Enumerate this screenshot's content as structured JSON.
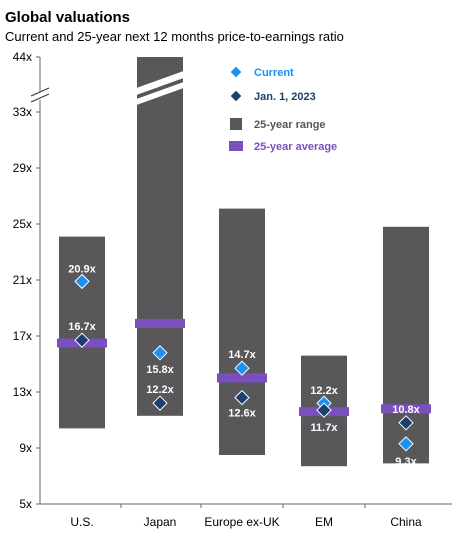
{
  "chart_data": {
    "type": "bar",
    "title": "Global valuations",
    "subtitle": "Current and 25-year next 12 months price-to-earnings ratio",
    "categories": [
      "U.S.",
      "Japan",
      "Europe ex-UK",
      "EM",
      "China"
    ],
    "ylim": [
      5,
      44
    ],
    "yticks": [
      5,
      9,
      13,
      17,
      21,
      25,
      29,
      33,
      44
    ],
    "ytick_labels": [
      "5x",
      "9x",
      "13x",
      "17x",
      "21x",
      "25x",
      "29x",
      "33x",
      "44x"
    ],
    "axis_break": "between 33x and 44x",
    "range": [
      {
        "low": 10.4,
        "high": 24.1
      },
      {
        "low": 11.3,
        "high": 44
      },
      {
        "low": 8.5,
        "high": 26.1
      },
      {
        "low": 7.7,
        "high": 15.6
      },
      {
        "low": 7.9,
        "high": 24.8
      }
    ],
    "series": [
      {
        "name": "Current",
        "values": [
          20.9,
          15.8,
          14.7,
          12.2,
          9.3
        ],
        "labels": [
          "20.9x",
          "15.8x",
          "14.7x",
          "12.2x",
          "9.3x"
        ],
        "marker": "diamond"
      },
      {
        "name": "Jan. 1, 2023",
        "values": [
          16.7,
          12.2,
          12.6,
          11.7,
          10.8
        ],
        "labels": [
          "16.7x",
          "12.2x",
          "12.6x",
          "11.7x",
          "10.8x"
        ],
        "marker": "diamond"
      },
      {
        "name": "25-year average",
        "values": [
          16.5,
          17.9,
          14.0,
          11.6,
          11.8
        ],
        "marker": "bar-line"
      }
    ],
    "legend": [
      {
        "name": "Current",
        "key": "current"
      },
      {
        "name": "Jan. 1, 2023",
        "key": "jan"
      },
      {
        "name": "25-year range",
        "key": "range"
      },
      {
        "name": "25-year average",
        "key": "avg"
      }
    ],
    "legend_placement": "top-center",
    "grid": false,
    "colors": {
      "range": "#58585b",
      "average": "#7b4fbd",
      "current": "#1e90f0",
      "jan": "#1c3f6e",
      "legend_text": "#1e90f0",
      "legend_text_dark": "#1c3f6e",
      "avg_text": "#7b4fbd",
      "title": "#000000",
      "axis": "#666666",
      "label_on_bar": "#ffffff"
    }
  }
}
